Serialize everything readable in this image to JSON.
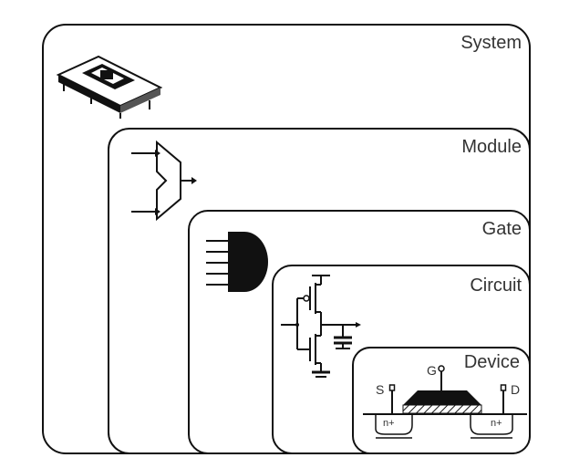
{
  "levels": [
    {
      "name": "system",
      "label": "System"
    },
    {
      "name": "module",
      "label": "Module"
    },
    {
      "name": "gate",
      "label": "Gate"
    },
    {
      "name": "circuit",
      "label": "Circuit"
    },
    {
      "name": "device",
      "label": "Device"
    }
  ],
  "device_terminals": {
    "source": "S",
    "gate": "G",
    "drain": "D"
  },
  "doping": {
    "left": "n+",
    "right": "n+"
  },
  "icons": {
    "system": "chip-package-icon",
    "module": "multiplexer-icon",
    "gate": "and-gate-icon",
    "circuit": "transistor-circuit-icon",
    "device": "mosfet-cross-section-icon"
  },
  "colors": {
    "line": "#111111",
    "background": "#ffffff",
    "text": "#333333"
  }
}
